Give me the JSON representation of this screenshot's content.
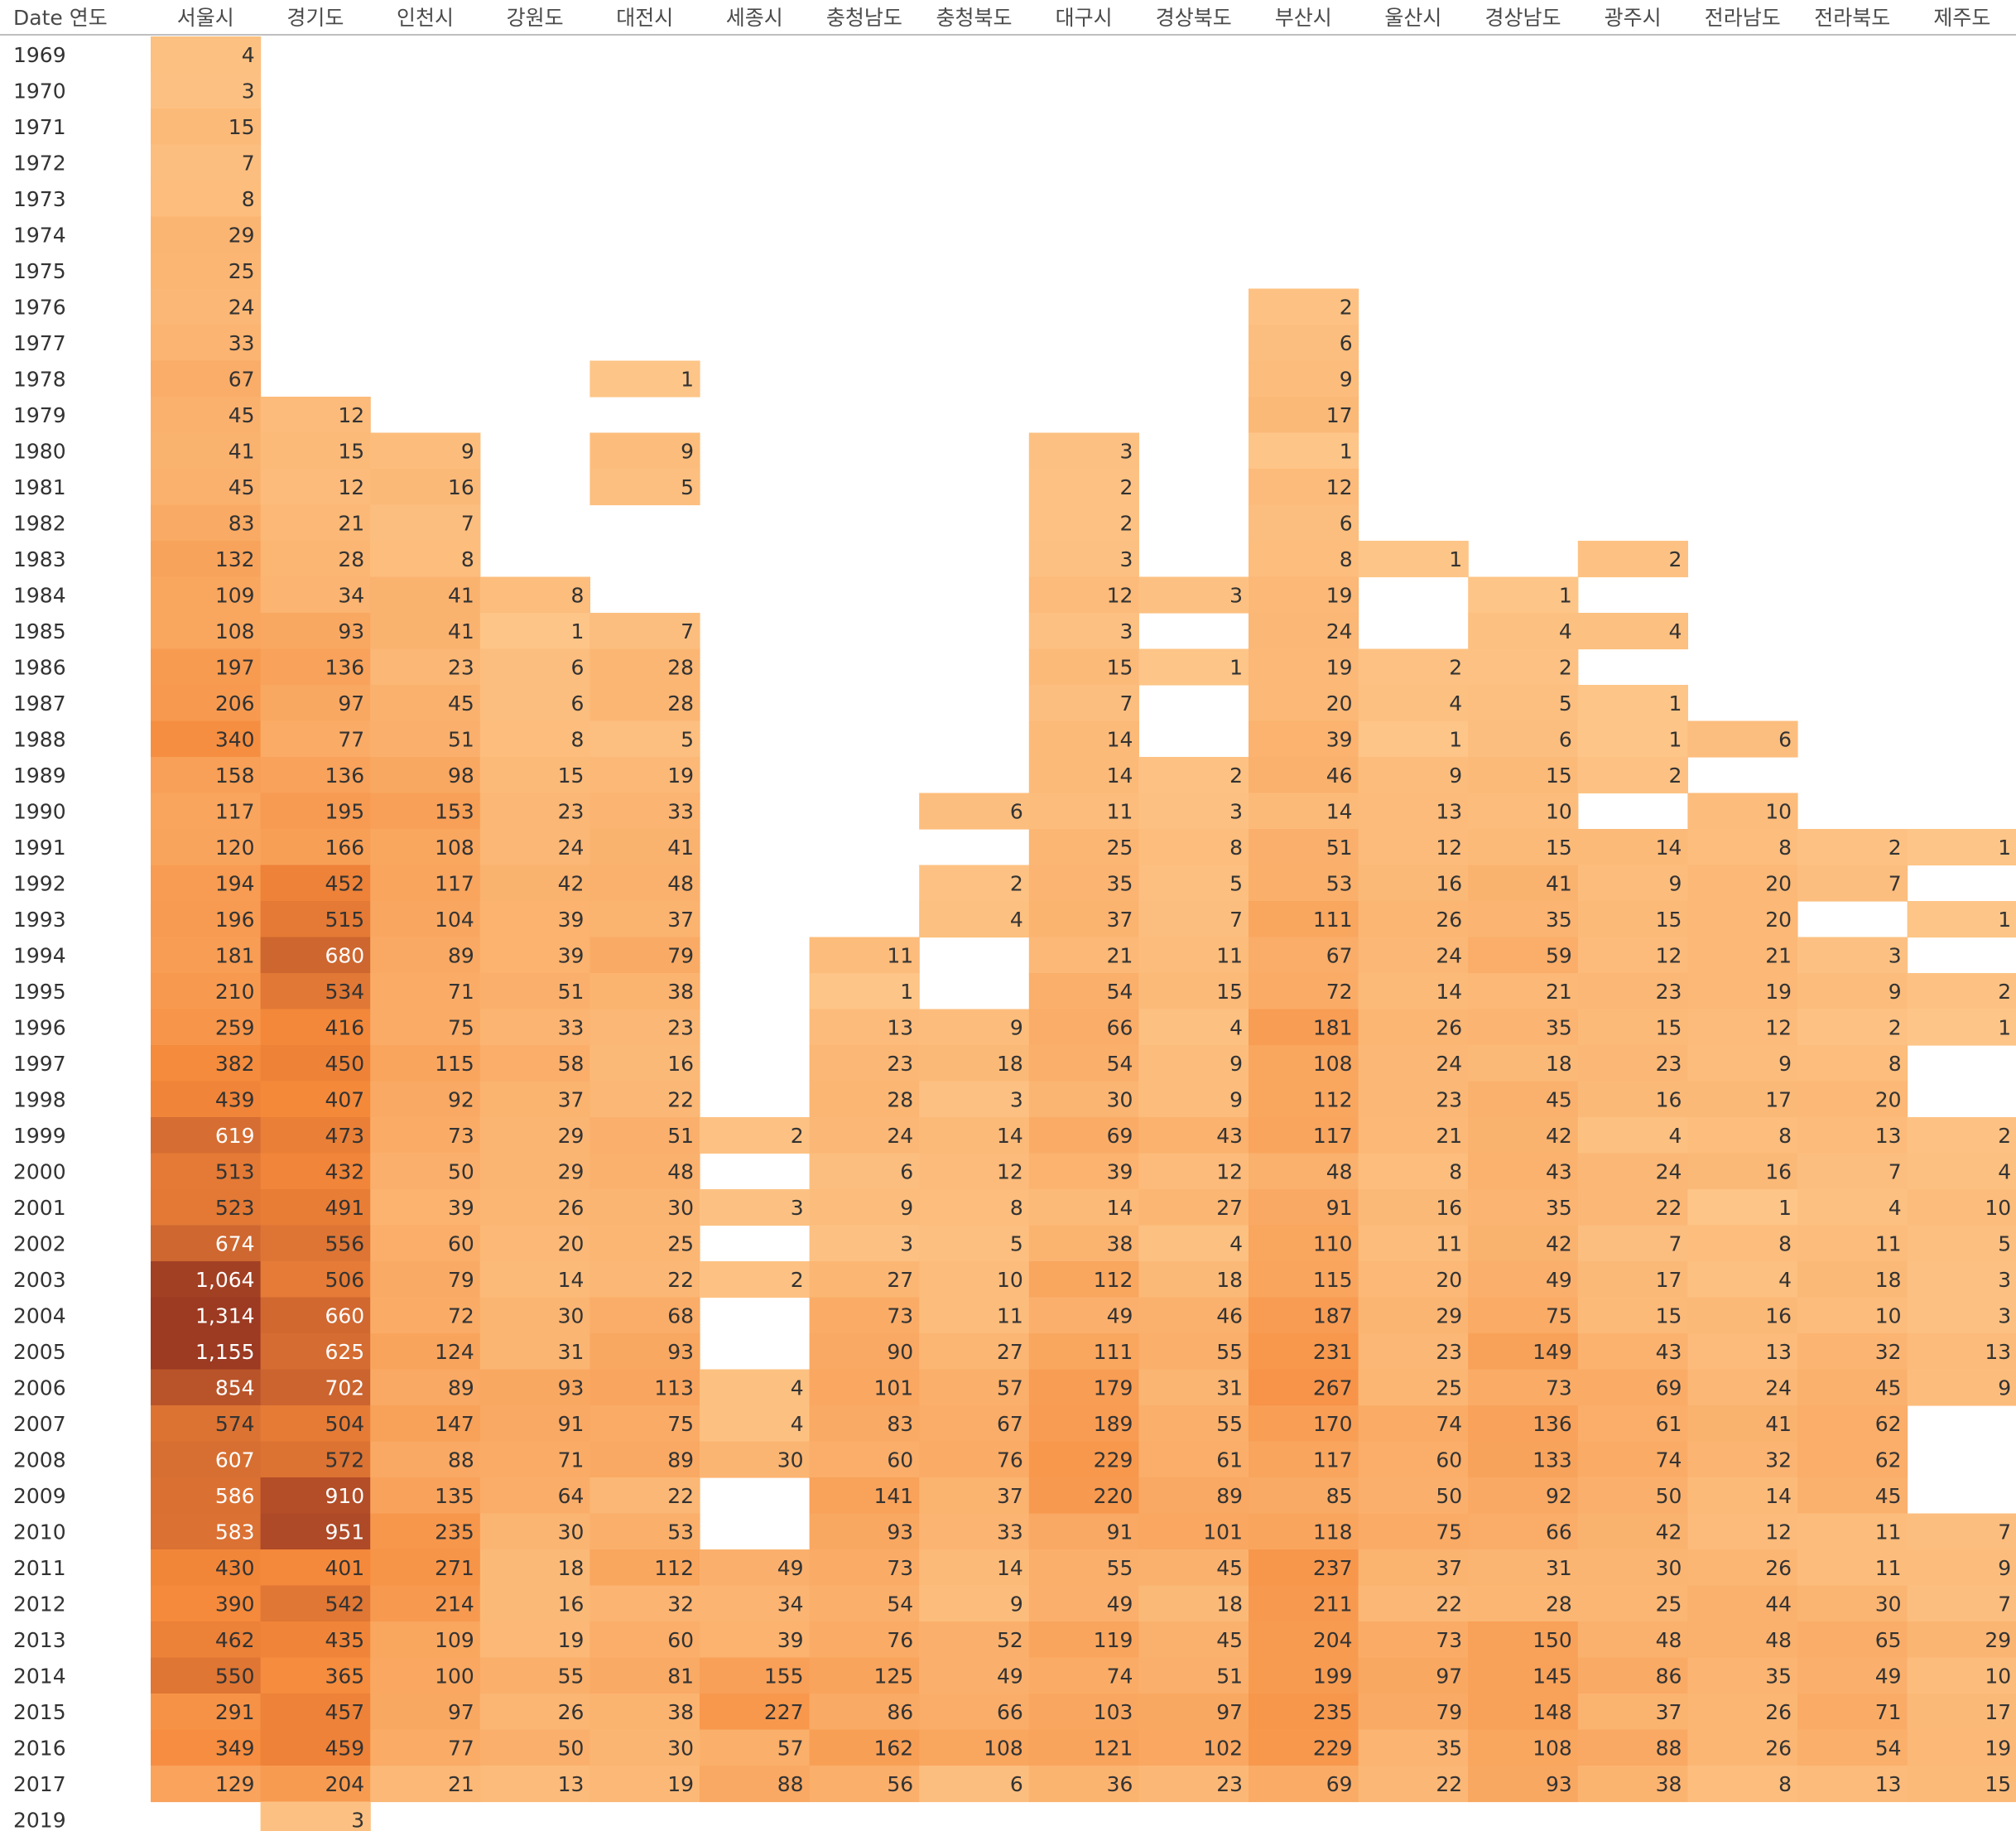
{
  "chart_data": {
    "type": "heatmap",
    "row_header_label": "Date 연도",
    "columns": [
      "서울시",
      "경기도",
      "인천시",
      "강원도",
      "대전시",
      "세종시",
      "충청남도",
      "충청북도",
      "대구시",
      "경상북도",
      "부산시",
      "울산시",
      "경상남도",
      "광주시",
      "전라남도",
      "전라북도",
      "제주도"
    ],
    "years": [
      "1969",
      "1970",
      "1971",
      "1972",
      "1973",
      "1974",
      "1975",
      "1976",
      "1977",
      "1978",
      "1979",
      "1980",
      "1981",
      "1982",
      "1983",
      "1984",
      "1985",
      "1986",
      "1987",
      "1988",
      "1989",
      "1990",
      "1991",
      "1992",
      "1993",
      "1994",
      "1995",
      "1996",
      "1997",
      "1998",
      "1999",
      "2000",
      "2001",
      "2002",
      "2003",
      "2004",
      "2005",
      "2006",
      "2007",
      "2008",
      "2009",
      "2010",
      "2011",
      "2012",
      "2013",
      "2014",
      "2015",
      "2016",
      "2017",
      "2019"
    ],
    "values": [
      [
        4,
        null,
        null,
        null,
        null,
        null,
        null,
        null,
        null,
        null,
        null,
        null,
        null,
        null,
        null,
        null,
        null
      ],
      [
        3,
        null,
        null,
        null,
        null,
        null,
        null,
        null,
        null,
        null,
        null,
        null,
        null,
        null,
        null,
        null,
        null
      ],
      [
        15,
        null,
        null,
        null,
        null,
        null,
        null,
        null,
        null,
        null,
        null,
        null,
        null,
        null,
        null,
        null,
        null
      ],
      [
        7,
        null,
        null,
        null,
        null,
        null,
        null,
        null,
        null,
        null,
        null,
        null,
        null,
        null,
        null,
        null,
        null
      ],
      [
        8,
        null,
        null,
        null,
        null,
        null,
        null,
        null,
        null,
        null,
        null,
        null,
        null,
        null,
        null,
        null,
        null
      ],
      [
        29,
        null,
        null,
        null,
        null,
        null,
        null,
        null,
        null,
        null,
        null,
        null,
        null,
        null,
        null,
        null,
        null
      ],
      [
        25,
        null,
        null,
        null,
        null,
        null,
        null,
        null,
        null,
        null,
        null,
        null,
        null,
        null,
        null,
        null,
        null
      ],
      [
        24,
        null,
        null,
        null,
        null,
        null,
        null,
        null,
        null,
        null,
        2,
        null,
        null,
        null,
        null,
        null,
        null
      ],
      [
        33,
        null,
        null,
        null,
        null,
        null,
        null,
        null,
        null,
        null,
        6,
        null,
        null,
        null,
        null,
        null,
        null
      ],
      [
        67,
        null,
        null,
        null,
        1,
        null,
        null,
        null,
        null,
        null,
        9,
        null,
        null,
        null,
        null,
        null,
        null
      ],
      [
        45,
        12,
        null,
        null,
        null,
        null,
        null,
        null,
        null,
        null,
        17,
        null,
        null,
        null,
        null,
        null,
        null
      ],
      [
        41,
        15,
        9,
        null,
        9,
        null,
        null,
        null,
        3,
        null,
        1,
        null,
        null,
        null,
        null,
        null,
        null
      ],
      [
        45,
        12,
        16,
        null,
        5,
        null,
        null,
        null,
        2,
        null,
        12,
        null,
        null,
        null,
        null,
        null,
        null
      ],
      [
        83,
        21,
        7,
        null,
        null,
        null,
        null,
        null,
        2,
        null,
        6,
        null,
        null,
        null,
        null,
        null,
        null
      ],
      [
        132,
        28,
        8,
        null,
        null,
        null,
        null,
        null,
        3,
        null,
        8,
        1,
        null,
        2,
        null,
        null,
        null
      ],
      [
        109,
        34,
        41,
        8,
        null,
        null,
        null,
        null,
        12,
        3,
        19,
        null,
        1,
        null,
        null,
        null,
        null
      ],
      [
        108,
        93,
        41,
        1,
        7,
        null,
        null,
        null,
        3,
        null,
        24,
        null,
        4,
        4,
        null,
        null,
        null
      ],
      [
        197,
        136,
        23,
        6,
        28,
        null,
        null,
        null,
        15,
        1,
        19,
        2,
        2,
        null,
        null,
        null,
        null
      ],
      [
        206,
        97,
        45,
        6,
        28,
        null,
        null,
        null,
        7,
        null,
        20,
        4,
        5,
        1,
        null,
        null,
        null
      ],
      [
        340,
        77,
        51,
        8,
        5,
        null,
        null,
        null,
        14,
        null,
        39,
        1,
        6,
        1,
        6,
        null,
        null
      ],
      [
        158,
        136,
        98,
        15,
        19,
        null,
        null,
        null,
        14,
        2,
        46,
        9,
        15,
        2,
        null,
        null,
        null
      ],
      [
        117,
        195,
        153,
        23,
        33,
        null,
        null,
        6,
        11,
        3,
        14,
        13,
        10,
        null,
        10,
        null,
        null
      ],
      [
        120,
        166,
        108,
        24,
        41,
        null,
        null,
        null,
        25,
        8,
        51,
        12,
        15,
        14,
        8,
        2,
        1
      ],
      [
        194,
        452,
        117,
        42,
        48,
        null,
        null,
        2,
        35,
        5,
        53,
        16,
        41,
        9,
        20,
        7,
        null
      ],
      [
        196,
        515,
        104,
        39,
        37,
        null,
        null,
        4,
        37,
        7,
        111,
        26,
        35,
        15,
        20,
        null,
        1
      ],
      [
        181,
        680,
        89,
        39,
        79,
        null,
        11,
        null,
        21,
        11,
        67,
        24,
        59,
        12,
        21,
        3,
        null
      ],
      [
        210,
        534,
        71,
        51,
        38,
        null,
        1,
        null,
        54,
        15,
        72,
        14,
        21,
        23,
        19,
        9,
        2
      ],
      [
        259,
        416,
        75,
        33,
        23,
        null,
        13,
        9,
        66,
        4,
        181,
        26,
        35,
        15,
        12,
        2,
        1
      ],
      [
        382,
        450,
        115,
        58,
        16,
        null,
        23,
        18,
        54,
        9,
        108,
        24,
        18,
        23,
        9,
        8,
        null
      ],
      [
        439,
        407,
        92,
        37,
        22,
        null,
        28,
        3,
        30,
        9,
        112,
        23,
        45,
        16,
        17,
        20,
        null
      ],
      [
        619,
        473,
        73,
        29,
        51,
        2,
        24,
        14,
        69,
        43,
        117,
        21,
        42,
        4,
        8,
        13,
        2
      ],
      [
        513,
        432,
        50,
        29,
        48,
        null,
        6,
        12,
        39,
        12,
        48,
        8,
        43,
        24,
        16,
        7,
        4
      ],
      [
        523,
        491,
        39,
        26,
        30,
        3,
        9,
        8,
        14,
        27,
        91,
        16,
        35,
        22,
        1,
        4,
        10
      ],
      [
        674,
        556,
        60,
        20,
        25,
        null,
        3,
        5,
        38,
        4,
        110,
        11,
        42,
        7,
        8,
        11,
        5
      ],
      [
        1064,
        506,
        79,
        14,
        22,
        2,
        27,
        10,
        112,
        18,
        115,
        20,
        49,
        17,
        4,
        18,
        3
      ],
      [
        1314,
        660,
        72,
        30,
        68,
        null,
        73,
        11,
        49,
        46,
        187,
        29,
        75,
        15,
        16,
        10,
        3
      ],
      [
        1155,
        625,
        124,
        31,
        93,
        null,
        90,
        27,
        111,
        55,
        231,
        23,
        149,
        43,
        13,
        32,
        13
      ],
      [
        854,
        702,
        89,
        93,
        113,
        4,
        101,
        57,
        179,
        31,
        267,
        25,
        73,
        69,
        24,
        45,
        9
      ],
      [
        574,
        504,
        147,
        91,
        75,
        4,
        83,
        67,
        189,
        55,
        170,
        74,
        136,
        61,
        41,
        62,
        null
      ],
      [
        607,
        572,
        88,
        71,
        89,
        30,
        60,
        76,
        229,
        61,
        117,
        60,
        133,
        74,
        32,
        62,
        null
      ],
      [
        586,
        910,
        135,
        64,
        22,
        null,
        141,
        37,
        220,
        89,
        85,
        50,
        92,
        50,
        14,
        45,
        null
      ],
      [
        583,
        951,
        235,
        30,
        53,
        null,
        93,
        33,
        91,
        101,
        118,
        75,
        66,
        42,
        12,
        11,
        7
      ],
      [
        430,
        401,
        271,
        18,
        112,
        49,
        73,
        14,
        55,
        45,
        237,
        37,
        31,
        30,
        26,
        11,
        9
      ],
      [
        390,
        542,
        214,
        16,
        32,
        34,
        54,
        9,
        49,
        18,
        211,
        22,
        28,
        25,
        44,
        30,
        7
      ],
      [
        462,
        435,
        109,
        19,
        60,
        39,
        76,
        52,
        119,
        45,
        204,
        73,
        150,
        48,
        48,
        65,
        29
      ],
      [
        550,
        365,
        100,
        55,
        81,
        155,
        125,
        49,
        74,
        51,
        199,
        97,
        145,
        86,
        35,
        49,
        10
      ],
      [
        291,
        457,
        97,
        26,
        38,
        227,
        86,
        66,
        103,
        97,
        235,
        79,
        148,
        37,
        26,
        71,
        17
      ],
      [
        349,
        459,
        77,
        50,
        30,
        57,
        162,
        108,
        121,
        102,
        229,
        35,
        108,
        88,
        26,
        54,
        19
      ],
      [
        129,
        204,
        21,
        13,
        19,
        88,
        56,
        6,
        36,
        23,
        69,
        22,
        93,
        38,
        8,
        13,
        15
      ],
      [
        null,
        3,
        null,
        null,
        null,
        null,
        null,
        null,
        null,
        null,
        null,
        null,
        null,
        null,
        null,
        null,
        null
      ]
    ],
    "value_range": [
      1,
      1314
    ],
    "colors": {
      "low": "#fdc587",
      "mid": "#f5893a",
      "high": "#9c3a22",
      "text_dark": "#333333",
      "text_light": "#ffffff",
      "header_text": "#4a4a4a",
      "rule": "#bfbfbf"
    }
  }
}
